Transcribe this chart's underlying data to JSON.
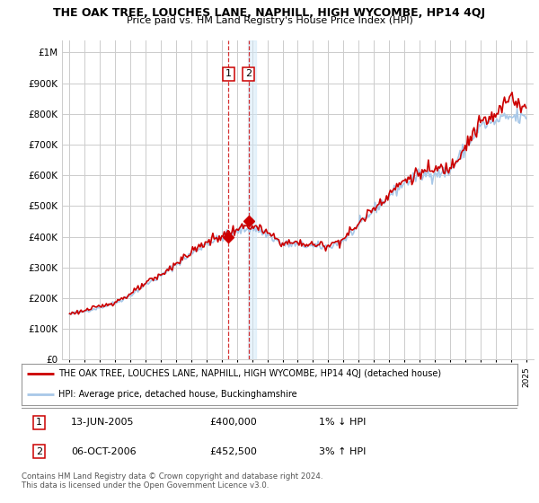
{
  "title": "THE OAK TREE, LOUCHES LANE, NAPHILL, HIGH WYCOMBE, HP14 4QJ",
  "subtitle": "Price paid vs. HM Land Registry's House Price Index (HPI)",
  "legend_line1": "THE OAK TREE, LOUCHES LANE, NAPHILL, HIGH WYCOMBE, HP14 4QJ (detached house)",
  "legend_line2": "HPI: Average price, detached house, Buckinghamshire",
  "footnote1": "Contains HM Land Registry data © Crown copyright and database right 2024.",
  "footnote2": "This data is licensed under the Open Government Licence v3.0.",
  "annotation1_label": "1",
  "annotation1_date": "13-JUN-2005",
  "annotation1_price": "£400,000",
  "annotation1_hpi": "1% ↓ HPI",
  "annotation2_label": "2",
  "annotation2_date": "06-OCT-2006",
  "annotation2_price": "£452,500",
  "annotation2_hpi": "3% ↑ HPI",
  "sale1_year": 2005.45,
  "sale1_price": 400000,
  "sale2_year": 2006.77,
  "sale2_price": 452500,
  "ylim": [
    0,
    1000000
  ],
  "ytick_max": 1000000,
  "xlim_start": 1994.5,
  "xlim_end": 2025.5,
  "hpi_color": "#a8c8e8",
  "price_color": "#cc0000",
  "grid_color": "#cccccc",
  "background_color": "#ffffff",
  "shade_color": "#d0e8f8"
}
